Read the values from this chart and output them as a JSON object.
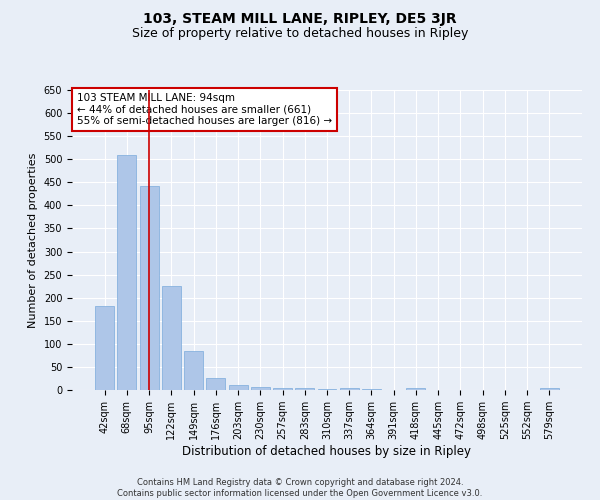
{
  "title": "103, STEAM MILL LANE, RIPLEY, DE5 3JR",
  "subtitle": "Size of property relative to detached houses in Ripley",
  "xlabel": "Distribution of detached houses by size in Ripley",
  "ylabel": "Number of detached properties",
  "categories": [
    "42sqm",
    "68sqm",
    "95sqm",
    "122sqm",
    "149sqm",
    "176sqm",
    "203sqm",
    "230sqm",
    "257sqm",
    "283sqm",
    "310sqm",
    "337sqm",
    "364sqm",
    "391sqm",
    "418sqm",
    "445sqm",
    "472sqm",
    "498sqm",
    "525sqm",
    "552sqm",
    "579sqm"
  ],
  "values": [
    182,
    510,
    443,
    225,
    85,
    27,
    10,
    7,
    5,
    5,
    2,
    5,
    2,
    0,
    4,
    1,
    0,
    0,
    0,
    0,
    4
  ],
  "bar_color": "#aec6e8",
  "bar_edge_color": "#7aabdc",
  "background_color": "#e8eef7",
  "grid_color": "#ffffff",
  "vline_x": 2,
  "vline_color": "#cc0000",
  "annotation_text": "103 STEAM MILL LANE: 94sqm\n← 44% of detached houses are smaller (661)\n55% of semi-detached houses are larger (816) →",
  "annotation_box_color": "#ffffff",
  "annotation_box_edge_color": "#cc0000",
  "ylim": [
    0,
    650
  ],
  "yticks": [
    0,
    50,
    100,
    150,
    200,
    250,
    300,
    350,
    400,
    450,
    500,
    550,
    600,
    650
  ],
  "footer": "Contains HM Land Registry data © Crown copyright and database right 2024.\nContains public sector information licensed under the Open Government Licence v3.0.",
  "title_fontsize": 10,
  "subtitle_fontsize": 9,
  "annotation_fontsize": 7.5,
  "tick_fontsize": 7,
  "ylabel_fontsize": 8,
  "xlabel_fontsize": 8.5
}
